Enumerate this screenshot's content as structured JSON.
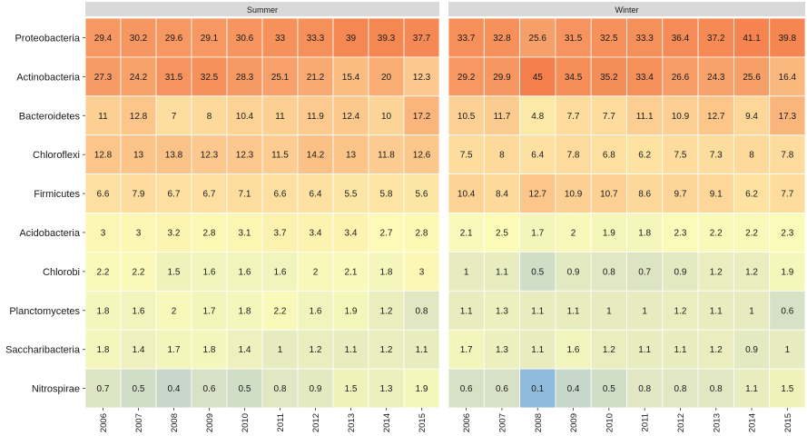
{
  "chart_data": {
    "type": "heatmap",
    "facets": [
      "Summer",
      "Winter"
    ],
    "years": [
      "2006",
      "2007",
      "2008",
      "2009",
      "2010",
      "2011",
      "2012",
      "2013",
      "2014",
      "2015"
    ],
    "taxa": [
      "Proteobacteria",
      "Actinobacteria",
      "Bacteroidetes",
      "Chloroflexi",
      "Firmicutes",
      "Acidobacteria",
      "Chlorobi",
      "Planctomycetes",
      "Saccharibacteria",
      "Nitrospirae"
    ],
    "values": {
      "Summer": [
        [
          "29.4",
          "30.2",
          "29.6",
          "29.1",
          "30.6",
          "33",
          "33.3",
          "39",
          "39.3",
          "37.7"
        ],
        [
          "27.3",
          "24.2",
          "31.5",
          "32.5",
          "28.3",
          "25.1",
          "21.2",
          "15.4",
          "20",
          "12.3"
        ],
        [
          "11",
          "12.8",
          "7",
          "8",
          "10.4",
          "11",
          "11.9",
          "12.4",
          "10",
          "17.2"
        ],
        [
          "12.8",
          "13",
          "13.8",
          "12.3",
          "12.3",
          "11.5",
          "14.2",
          "13",
          "11.8",
          "12.6"
        ],
        [
          "6.6",
          "7.9",
          "6.7",
          "6.7",
          "7.1",
          "6.6",
          "6.4",
          "5.5",
          "5.8",
          "5.6"
        ],
        [
          "3",
          "3",
          "3.2",
          "2.8",
          "3.1",
          "3.7",
          "3.4",
          "3.4",
          "2.7",
          "2.8"
        ],
        [
          "2.2",
          "2.2",
          "1.5",
          "1.6",
          "1.6",
          "1.6",
          "2",
          "2.1",
          "1.8",
          "3"
        ],
        [
          "1.8",
          "1.6",
          "2",
          "1.7",
          "1.8",
          "2.2",
          "1.6",
          "1.9",
          "1.2",
          "0.8"
        ],
        [
          "1.8",
          "1.4",
          "1.7",
          "1.8",
          "1.4",
          "1",
          "1.2",
          "1.1",
          "1.2",
          "1.1"
        ],
        [
          "0.7",
          "0.5",
          "0.4",
          "0.6",
          "0.5",
          "0.8",
          "0.9",
          "1.5",
          "1.3",
          "1.9"
        ]
      ],
      "Winter": [
        [
          "33.7",
          "32.8",
          "25.6",
          "31.5",
          "32.5",
          "33.3",
          "36.4",
          "37.2",
          "41.1",
          "39.8"
        ],
        [
          "29.2",
          "29.9",
          "45",
          "34.5",
          "35.2",
          "33.4",
          "26.6",
          "24.3",
          "25.6",
          "16.4"
        ],
        [
          "10.5",
          "11.7",
          "4.8",
          "7.7",
          "7.7",
          "11.1",
          "10.9",
          "12.7",
          "9.4",
          "17.3"
        ],
        [
          "7.5",
          "8",
          "6.4",
          "7.8",
          "6.8",
          "6.2",
          "7.5",
          "7.3",
          "8",
          "7.8"
        ],
        [
          "10.4",
          "8.4",
          "12.7",
          "10.9",
          "10.7",
          "8.6",
          "9.7",
          "9.1",
          "6.2",
          "7.7"
        ],
        [
          "2.1",
          "2.5",
          "1.7",
          "2",
          "1.9",
          "1.8",
          "2.3",
          "2.2",
          "2.2",
          "2.3"
        ],
        [
          "1",
          "1.1",
          "0.5",
          "0.9",
          "0.8",
          "0.7",
          "0.9",
          "1.2",
          "1.2",
          "1.9"
        ],
        [
          "1.1",
          "1.3",
          "1.1",
          "1.1",
          "1",
          "1",
          "1.2",
          "1.1",
          "1",
          "0.6"
        ],
        [
          "1.7",
          "1.3",
          "1.1",
          "1.6",
          "1.2",
          "1.1",
          "1.1",
          "1.2",
          "0.9",
          "1"
        ],
        [
          "0.6",
          "0.6",
          "0.1",
          "0.4",
          "0.5",
          "0.8",
          "0.8",
          "0.8",
          "1.1",
          "1.5"
        ]
      ]
    },
    "colors": {
      "scale": "log-diverging",
      "low": "#8fbcdc",
      "mid_low": "#dde4c3",
      "mid": "#fcfcb8",
      "mid_high": "#fdd497",
      "high": "#f47f4c",
      "strip_bg": "#d9d9d9",
      "grid": "#ffffff"
    },
    "title": "",
    "xlabel": "",
    "ylabel": "",
    "legend": "none"
  }
}
